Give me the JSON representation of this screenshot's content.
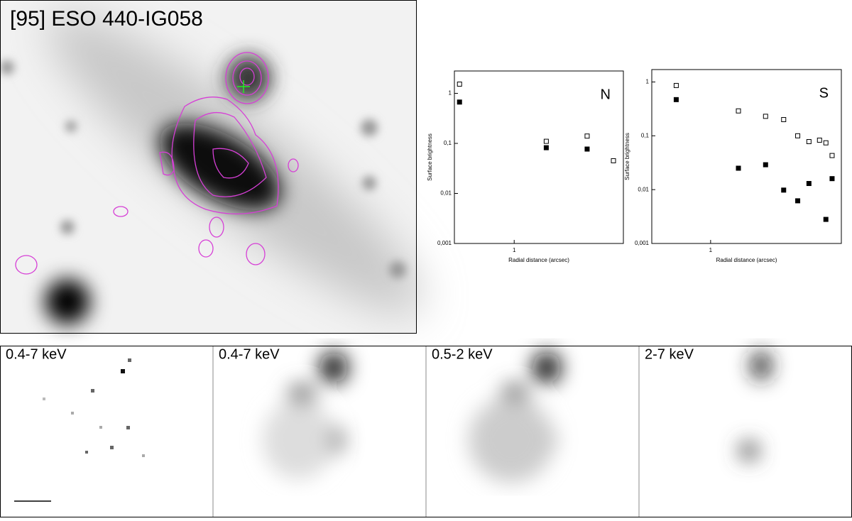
{
  "image": {
    "title": "[95] ESO 440-IG058"
  },
  "chart_data": [
    {
      "type": "scatter",
      "label": "N",
      "xlabel": "Radial distance (arcsec)",
      "ylabel": "Surface brightness",
      "xscale": "log",
      "yscale": "log",
      "xlim": [
        0.52,
        3.3
      ],
      "ylim": [
        0.001,
        2.8
      ],
      "xticks": [
        1
      ],
      "yticks": [
        {
          "value": 0.001,
          "label": "0,001"
        },
        {
          "value": 0.01,
          "label": "0,01"
        },
        {
          "value": 0.1,
          "label": "0,1"
        },
        1
      ],
      "series": [
        {
          "marker": "open",
          "color": "#000000",
          "x": [
            0.55,
            1.42,
            2.22,
            2.96
          ],
          "values": [
            1.53,
            0.11,
            0.14,
            0.045
          ]
        },
        {
          "marker": "filled",
          "color": "#000000",
          "x": [
            0.55,
            1.42,
            2.22
          ],
          "values": [
            0.67,
            0.082,
            0.077
          ]
        }
      ]
    },
    {
      "type": "scatter",
      "label": "S",
      "xlabel": "Radial distance (arcsec)",
      "ylabel": "Surface brightness",
      "xscale": "log",
      "yscale": "log",
      "xlim": [
        0.53,
        4.1
      ],
      "ylim": [
        0.001,
        1.7
      ],
      "xticks": [
        1
      ],
      "yticks": [
        {
          "value": 0.001,
          "label": "0,001"
        },
        {
          "value": 0.01,
          "label": "0,01"
        },
        {
          "value": 0.1,
          "label": "0,1"
        },
        1
      ],
      "series": [
        {
          "marker": "open",
          "color": "#000000",
          "x": [
            0.69,
            1.35,
            1.81,
            2.2,
            2.56,
            2.89,
            3.24,
            3.47,
            3.71
          ],
          "values": [
            0.86,
            0.29,
            0.23,
            0.2,
            0.1,
            0.078,
            0.083,
            0.074,
            0.043
          ]
        },
        {
          "marker": "filled",
          "color": "#000000",
          "x": [
            0.69,
            1.35,
            1.81,
            2.2,
            2.56,
            2.89,
            3.47,
            3.71
          ],
          "values": [
            0.47,
            0.025,
            0.029,
            0.0098,
            0.0062,
            0.013,
            0.0028,
            0.016
          ]
        }
      ]
    }
  ],
  "panels": [
    {
      "label": "0.4-7 keV"
    },
    {
      "label": "0.4-7 keV"
    },
    {
      "label": "0.5-2 keV"
    },
    {
      "label": "2-7 keV"
    }
  ]
}
